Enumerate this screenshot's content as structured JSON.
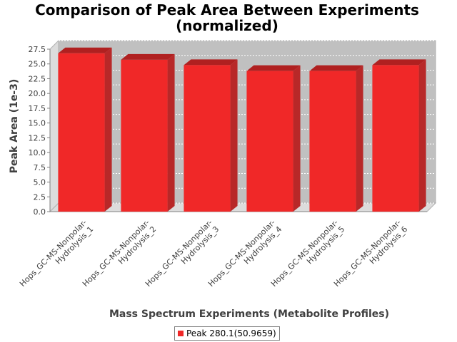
{
  "chart_data": {
    "type": "bar",
    "title": [
      "Comparison of Peak Area Between Experiments",
      "(normalized)"
    ],
    "xlabel": "Mass Spectrum Experiments (Metabolite Profiles)",
    "ylabel": "Peak Area (1e-3)",
    "ylim": [
      0,
      27.5
    ],
    "yticks": [
      "0.0",
      "2.5",
      "5.0",
      "7.5",
      "10.0",
      "12.5",
      "15.0",
      "17.5",
      "20.0",
      "22.5",
      "25.0",
      "27.5"
    ],
    "categories": [
      [
        "Hops_GC-MS-Nonpolar-",
        "Hydrolysis_1"
      ],
      [
        "Hops_GC-MS-Nonpolar-",
        "Hydrolysis_2"
      ],
      [
        "Hops_GC-MS-Nonpolar-",
        "Hydrolysis_3"
      ],
      [
        "Hops_GC-MS-Nonpolar-",
        "Hydrolysis_4"
      ],
      [
        "Hops_GC-MS-Nonpolar-",
        "Hydrolysis_5"
      ],
      [
        "Hops_GC-MS-Nonpolar-",
        "Hydrolysis_6"
      ]
    ],
    "series": [
      {
        "name": "Peak 280.1(50.9659)",
        "values": [
          26.8,
          25.7,
          24.8,
          23.8,
          23.8,
          24.8
        ]
      }
    ],
    "grid": true,
    "legend_position": "bottom",
    "colors": {
      "bar": "#f02828",
      "plot_bg": "#c0c0c0",
      "wall": "#dcdcdc"
    }
  }
}
